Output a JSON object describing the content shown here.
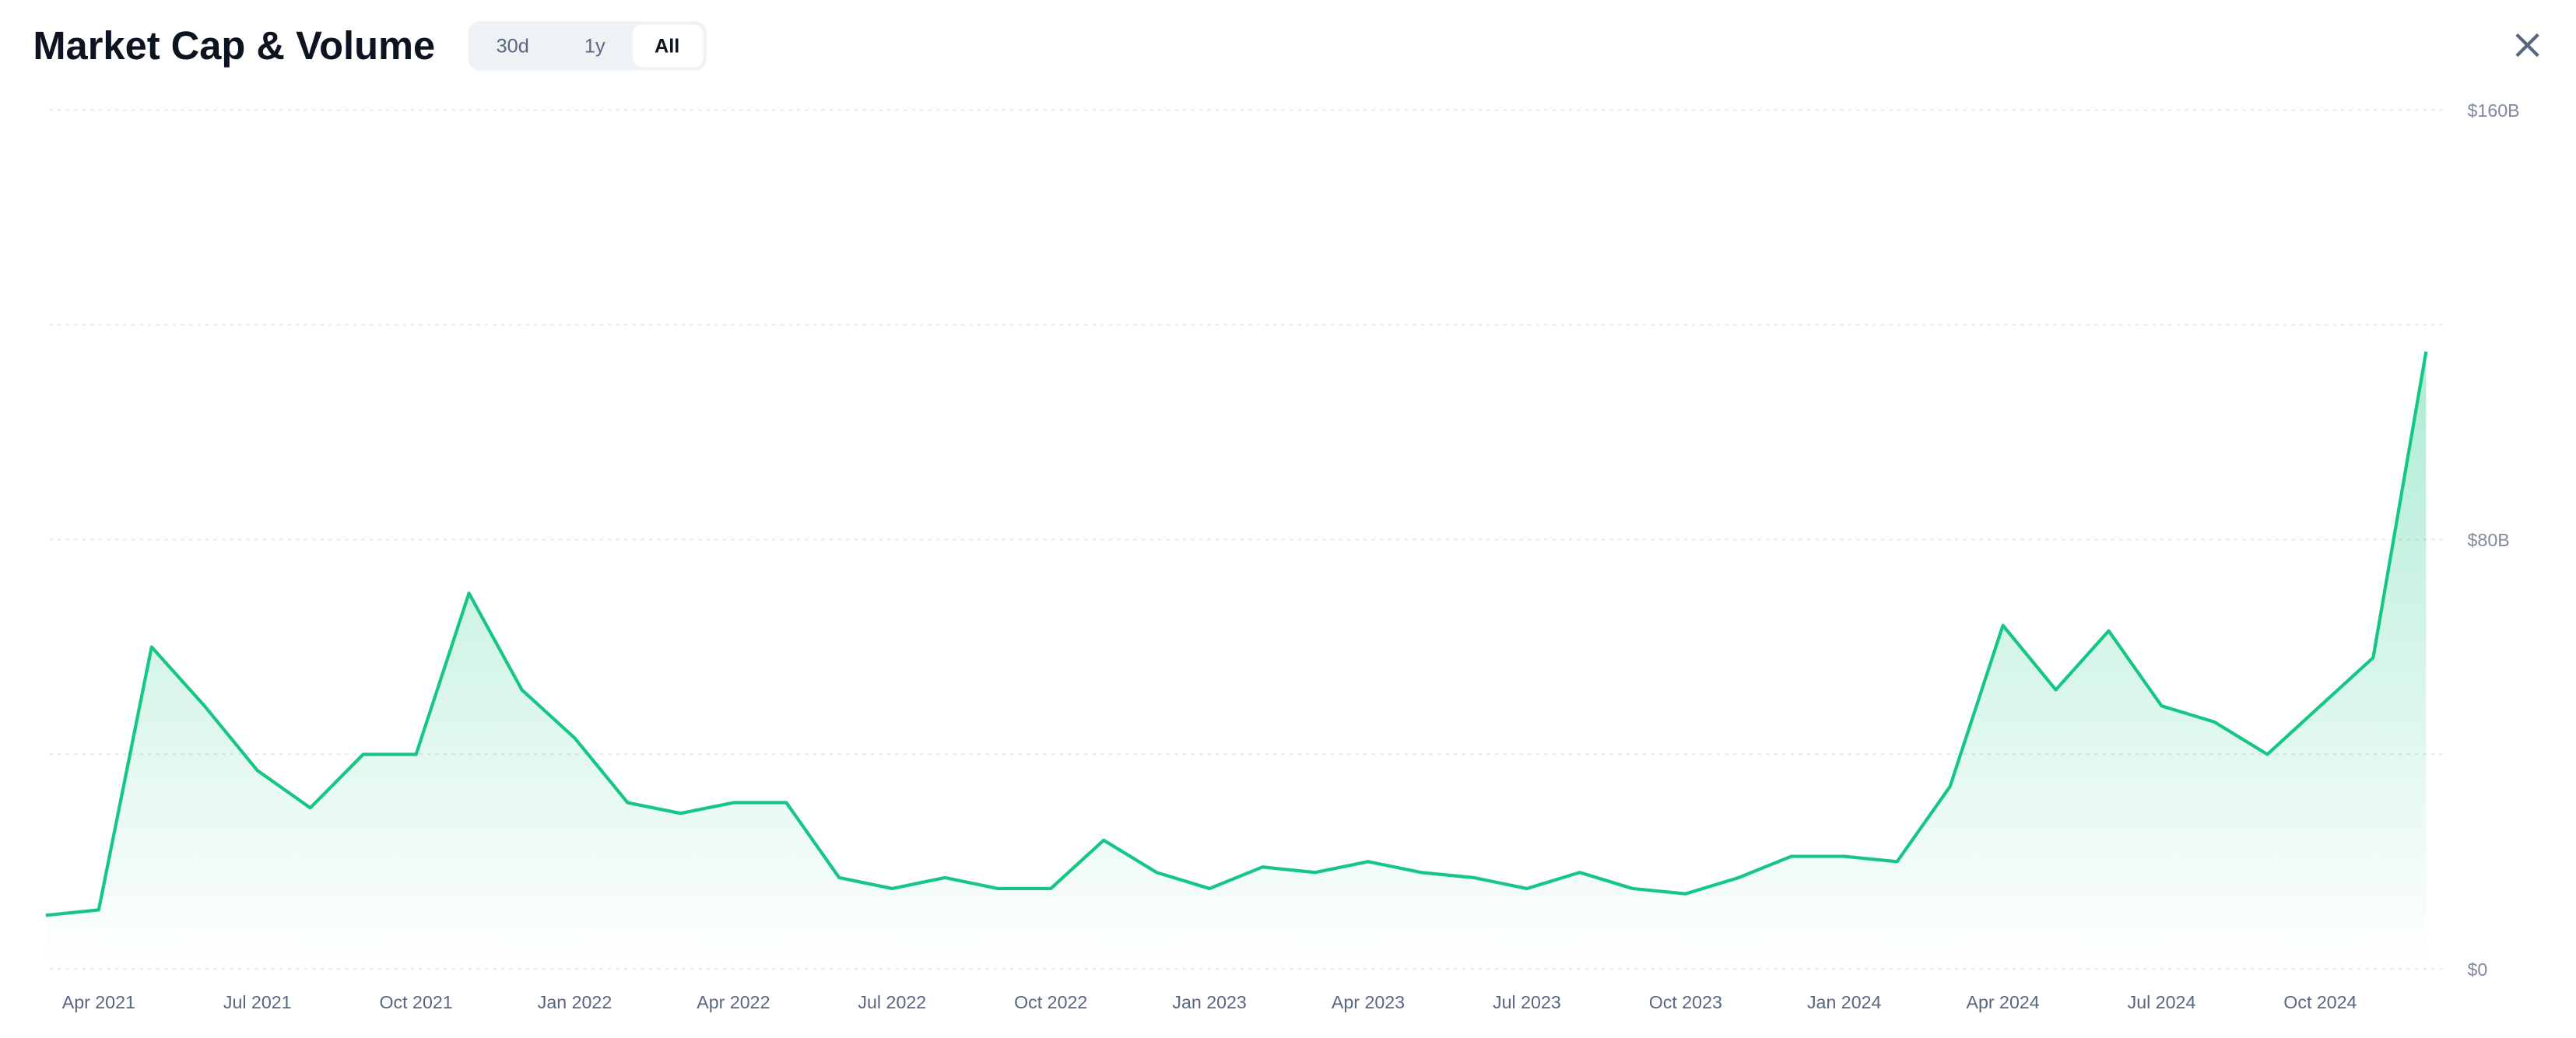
{
  "header": {
    "title": "Market Cap & Volume",
    "buttons": [
      "30d",
      "1y",
      "All"
    ],
    "active": "All"
  },
  "chart_data": {
    "type": "line",
    "x": [
      "2021-03",
      "2021-04",
      "2021-05",
      "2021-06",
      "2021-07",
      "2021-08",
      "2021-09",
      "2021-10",
      "2021-11",
      "2021-12",
      "2022-01",
      "2022-02",
      "2022-03",
      "2022-04",
      "2022-05",
      "2022-06",
      "2022-07",
      "2022-08",
      "2022-09",
      "2022-10",
      "2022-11",
      "2022-12",
      "2023-01",
      "2023-02",
      "2023-03",
      "2023-04",
      "2023-05",
      "2023-06",
      "2023-07",
      "2023-08",
      "2023-09",
      "2023-10",
      "2023-11",
      "2023-12",
      "2024-01",
      "2024-02",
      "2024-03",
      "2024-04",
      "2024-05",
      "2024-06",
      "2024-07",
      "2024-08",
      "2024-09",
      "2024-10",
      "2024-11",
      "2024-12"
    ],
    "series": [
      {
        "name": "Market Cap",
        "color": "#16c784",
        "values": [
          10,
          11,
          60,
          49,
          37,
          30,
          40,
          40,
          70,
          52,
          43,
          31,
          29,
          31,
          31,
          17,
          15,
          17,
          15,
          15,
          24,
          18,
          15,
          19,
          18,
          20,
          18,
          17,
          15,
          18,
          15,
          14,
          17,
          21,
          21,
          20,
          34,
          64,
          52,
          63,
          49,
          46,
          40,
          49,
          58,
          115
        ]
      }
    ],
    "ylim": [
      0,
      160
    ],
    "yticks": [
      {
        "value": 0,
        "label": "$0"
      },
      {
        "value": 40,
        "label": null
      },
      {
        "value": 80,
        "label": "$80B"
      },
      {
        "value": 120,
        "label": null
      },
      {
        "value": 160,
        "label": "$160B"
      }
    ],
    "xticks": [
      {
        "value": "2021-04",
        "label": "Apr 2021"
      },
      {
        "value": "2021-07",
        "label": "Jul 2021"
      },
      {
        "value": "2021-10",
        "label": "Oct 2021"
      },
      {
        "value": "2022-01",
        "label": "Jan 2022"
      },
      {
        "value": "2022-04",
        "label": "Apr 2022"
      },
      {
        "value": "2022-07",
        "label": "Jul 2022"
      },
      {
        "value": "2022-10",
        "label": "Oct 2022"
      },
      {
        "value": "2023-01",
        "label": "Jan 2023"
      },
      {
        "value": "2023-04",
        "label": "Apr 2023"
      },
      {
        "value": "2023-07",
        "label": "Jul 2023"
      },
      {
        "value": "2023-10",
        "label": "Oct 2023"
      },
      {
        "value": "2024-01",
        "label": "Jan 2024"
      },
      {
        "value": "2024-04",
        "label": "Apr 2024"
      },
      {
        "value": "2024-07",
        "label": "Jul 2024"
      },
      {
        "value": "2024-10",
        "label": "Oct 2024"
      }
    ],
    "grid": true
  }
}
